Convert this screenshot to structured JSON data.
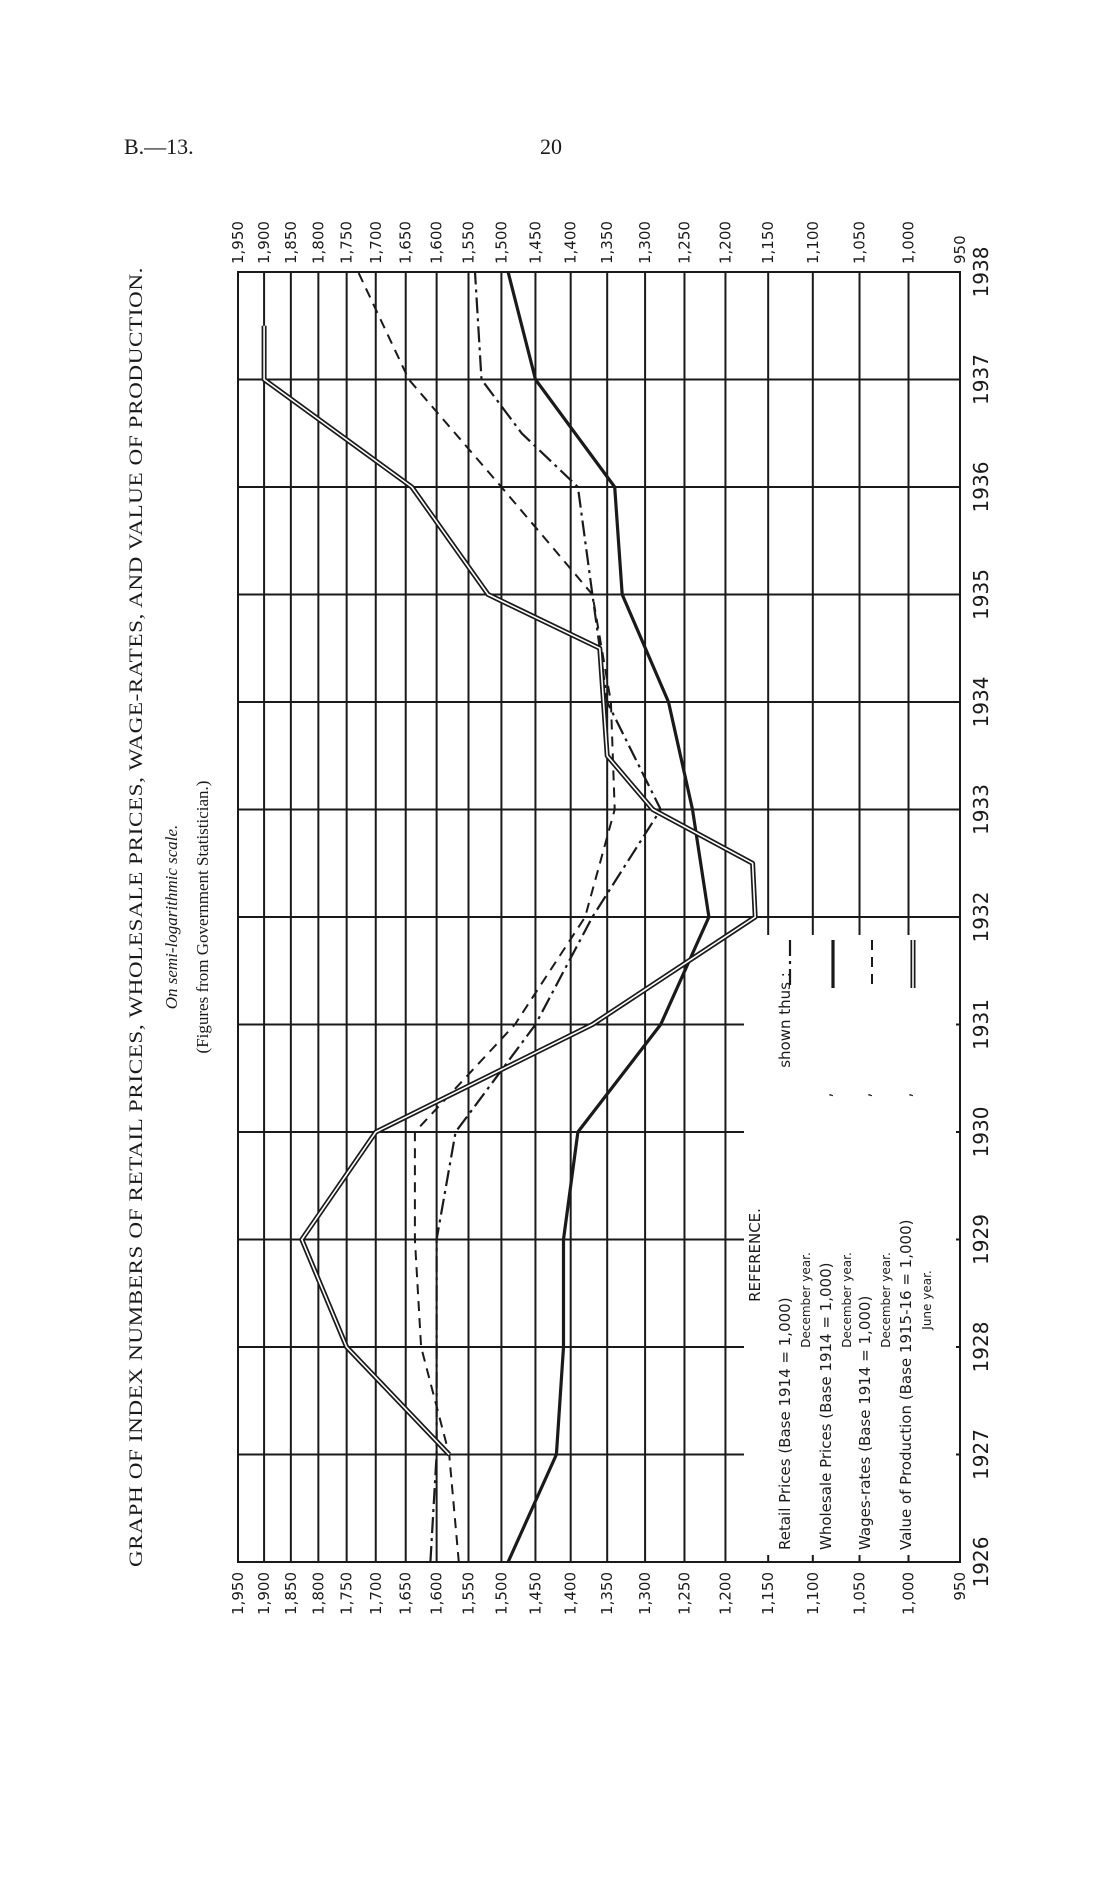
{
  "page": {
    "ref": "B.—13.",
    "number": "20"
  },
  "chart_data": {
    "type": "line",
    "title": "GRAPH OF INDEX NUMBERS OF RETAIL PRICES, WHOLESALE PRICES, WAGE-RATES, AND VALUE OF PRODUCTION.",
    "subtitle": "On semi-logarithmic scale.",
    "source": "(Figures from Government Statistician.)",
    "orientation": "rotated 90° counter-clockwise",
    "x_ticks": [
      "1926",
      "1927",
      "1928",
      "1929",
      "1930",
      "1931",
      "1932",
      "1933",
      "1934",
      "1935",
      "1936",
      "1937",
      "1938"
    ],
    "y_ticks": [
      "950",
      "1,000",
      "1,050",
      "1,100",
      "1,150",
      "1,200",
      "1,250",
      "1,300",
      "1,350",
      "1,400",
      "1,450",
      "1,500",
      "1,550",
      "1,600",
      "1,650",
      "1,700",
      "1,750",
      "1,800",
      "1,850",
      "1,900",
      "1,950"
    ],
    "y_scale": "log",
    "ylim": [
      950,
      1950
    ],
    "xlim": [
      1926,
      1938
    ],
    "grid": true,
    "legend": {
      "heading": "REFERENCE.",
      "shown_thus": "shown thus :",
      "items": [
        {
          "label": "Retail Prices (Base 1914 = 1,000)",
          "note": "December year.",
          "ditto": ""
        },
        {
          "label": "Wholesale Prices (Base 1914 = 1,000)",
          "note": "December year.",
          "ditto": ","
        },
        {
          "label": "Wages-rates (Base 1914 = 1,000)",
          "note": "December year.",
          "ditto": ","
        },
        {
          "label": "Value of Production (Base 1915-16 = 1,000)",
          "note": "June year.",
          "ditto": ","
        }
      ]
    },
    "series": [
      {
        "name": "Retail Prices",
        "style": "dash-dot",
        "x": [
          1926.0,
          1927.0,
          1928.0,
          1929.0,
          1930.0,
          1931.0,
          1932.0,
          1933.0,
          1934.0,
          1935.0,
          1936.0,
          1936.5,
          1937.0,
          1938.0
        ],
        "y": [
          1610,
          1600,
          1600,
          1600,
          1570,
          1450,
          1370,
          1280,
          1350,
          1370,
          1390,
          1470,
          1530,
          1540
        ]
      },
      {
        "name": "Wholesale Prices",
        "style": "heavy solid",
        "x": [
          1926.0,
          1927.0,
          1928.0,
          1929.0,
          1930.0,
          1931.0,
          1932.0,
          1933.0,
          1934.0,
          1935.0,
          1936.0,
          1937.0,
          1938.0
        ],
        "y": [
          1490,
          1420,
          1410,
          1410,
          1390,
          1280,
          1220,
          1240,
          1270,
          1330,
          1340,
          1450,
          1490
        ]
      },
      {
        "name": "Wages-rates",
        "style": "dashed",
        "x": [
          1926.0,
          1927.0,
          1928.0,
          1929.0,
          1930.0,
          1931.0,
          1932.0,
          1933.0,
          1934.0,
          1935.0,
          1936.0,
          1937.0,
          1938.0
        ],
        "y": [
          1565,
          1580,
          1625,
          1635,
          1635,
          1480,
          1380,
          1340,
          1345,
          1370,
          1500,
          1645,
          1730
        ]
      },
      {
        "name": "Value of Production",
        "style": "double line",
        "x": [
          1927.0,
          1928.0,
          1929.0,
          1930.0,
          1931.0,
          1932.0,
          1932.5,
          1933.0,
          1933.5,
          1934.0,
          1934.5,
          1935.0,
          1936.0,
          1937.0,
          1937.5
        ],
        "y": [
          1580,
          1750,
          1830,
          1700,
          1370,
          1165,
          1168,
          1290,
          1350,
          1355,
          1360,
          1520,
          1640,
          1900,
          1900
        ]
      }
    ]
  }
}
